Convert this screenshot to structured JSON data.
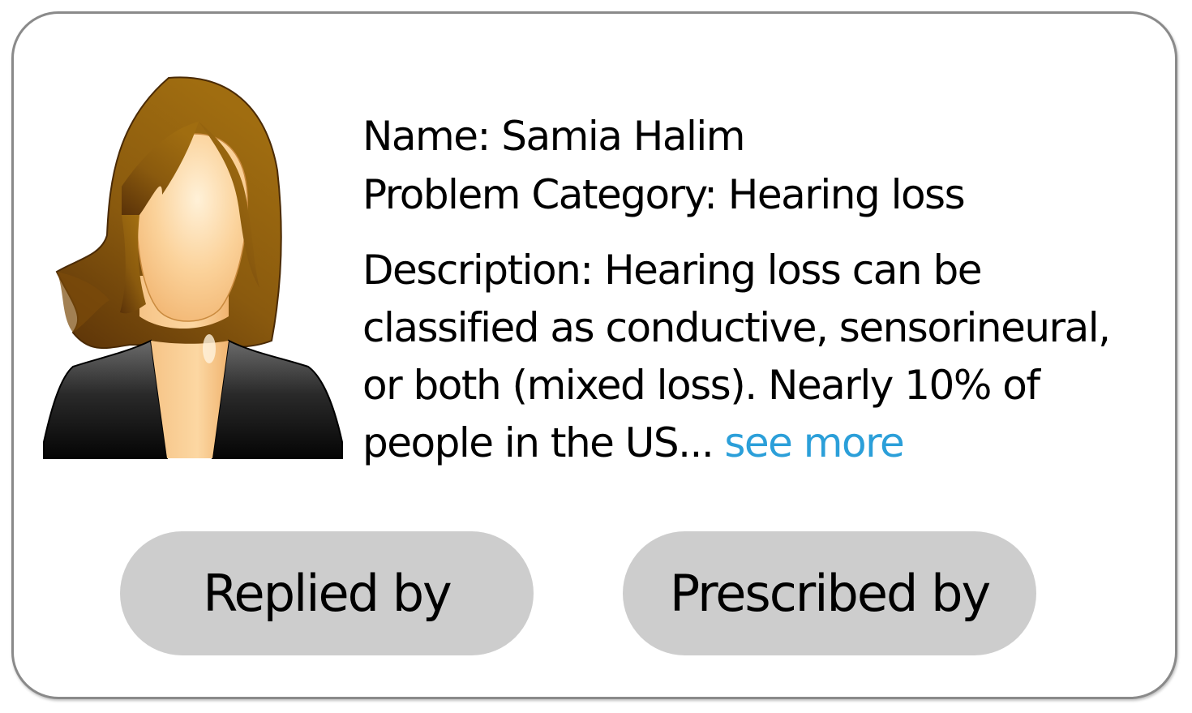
{
  "profile": {
    "avatar_icon": "female-user-avatar-icon",
    "name_line": "Name: Samia Halim",
    "category_line": "Problem Category: Hearing loss",
    "description_line_1": "Description: Hearing loss can be",
    "description_line_2": "classified as conductive, sensorineural,",
    "description_line_3": "or both (mixed loss). Nearly 10% of",
    "description_line_4": "people in the US...",
    "see_more_label": "see more",
    "link_color": "#2b9fd9"
  },
  "actions": {
    "replied_by_label": "Replied by",
    "prescribed_by_label": "Prescribed by",
    "button_color": "#cdcdcd"
  }
}
